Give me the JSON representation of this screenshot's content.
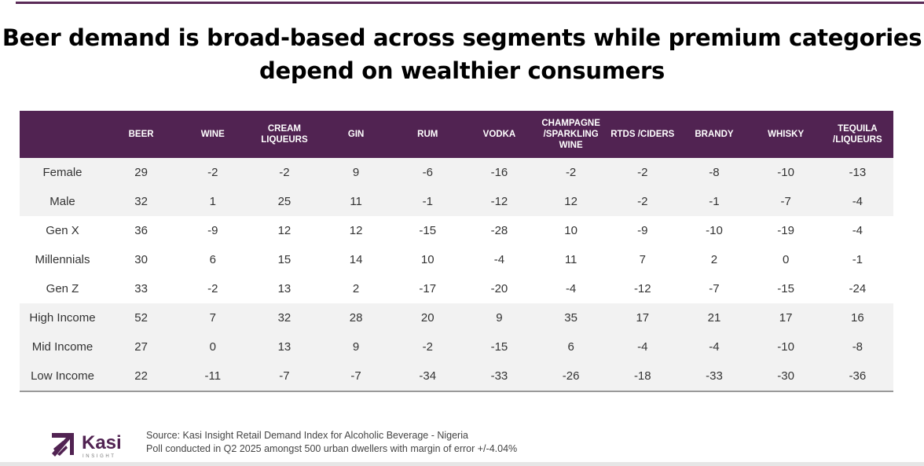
{
  "title_line1": "Beer demand is broad-based across segments while premium categories",
  "title_line2": "depend on wealthier consumers",
  "table": {
    "columns": [
      "",
      "BEER",
      "WINE",
      "CREAM LIQUEURS",
      "GIN",
      "RUM",
      "VODKA",
      "CHAMPAGNE /SPARKLING WINE",
      "RTDS /CIDERS",
      "BRANDY",
      "WHISKY",
      "TEQUILA /LIQUEURS"
    ],
    "rows": [
      {
        "label": "Female",
        "group": "gender",
        "values": [
          "29",
          "-2",
          "-2",
          "9",
          "-6",
          "-16",
          "-2",
          "-2",
          "-8",
          "-10",
          "-13"
        ]
      },
      {
        "label": "Male",
        "group": "gender",
        "values": [
          "32",
          "1",
          "25",
          "11",
          "-1",
          "-12",
          "12",
          "-2",
          "-1",
          "-7",
          "-4"
        ]
      },
      {
        "label": "Gen X",
        "group": "generation",
        "values": [
          "36",
          "-9",
          "12",
          "12",
          "-15",
          "-28",
          "10",
          "-9",
          "-10",
          "-19",
          "-4"
        ]
      },
      {
        "label": "Millennials",
        "group": "generation",
        "values": [
          "30",
          "6",
          "15",
          "14",
          "10",
          "-4",
          "11",
          "7",
          "2",
          "0",
          "-1"
        ]
      },
      {
        "label": "Gen Z",
        "group": "generation",
        "values": [
          "33",
          "-2",
          "13",
          "2",
          "-17",
          "-20",
          "-4",
          "-12",
          "-7",
          "-15",
          "-24"
        ]
      },
      {
        "label": "High Income",
        "group": "income",
        "values": [
          "52",
          "7",
          "32",
          "28",
          "20",
          "9",
          "35",
          "17",
          "21",
          "17",
          "16"
        ]
      },
      {
        "label": "Mid Income",
        "group": "income",
        "values": [
          "27",
          "0",
          "13",
          "9",
          "-2",
          "-15",
          "6",
          "-4",
          "-4",
          "-10",
          "-8"
        ]
      },
      {
        "label": "Low Income",
        "group": "income",
        "values": [
          "22",
          "-11",
          "-7",
          "-7",
          "-34",
          "-33",
          "-26",
          "-18",
          "-33",
          "-30",
          "-36"
        ]
      }
    ]
  },
  "footer": {
    "logo_name": "Kasi",
    "logo_sub": "INSIGHT",
    "source": "Source: Kasi Insight Retail Demand Index for Alcoholic Beverage - Nigeria",
    "note": "Poll conducted in Q2 2025 amongst 500 urban dwellers with margin of error +/-4.04%"
  },
  "colors": {
    "brand": "#512352",
    "band": "#f2f2f2"
  }
}
